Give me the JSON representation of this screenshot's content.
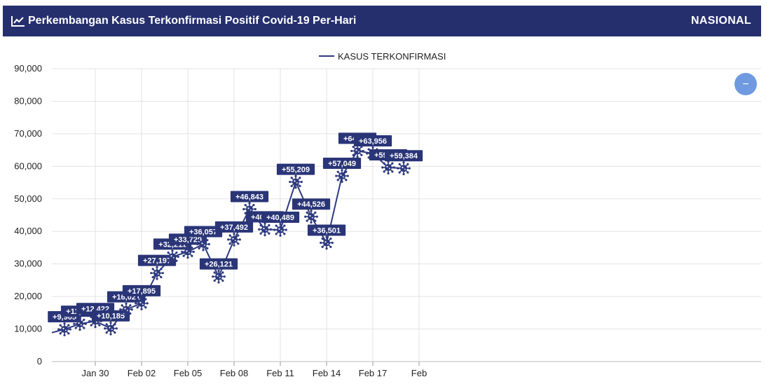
{
  "header": {
    "title": "Perkembangan Kasus Terkonfirmasi Positif Covid-19 Per-Hari",
    "scope": "NASIONAL",
    "icon": "line-chart-icon"
  },
  "zoom_button": {
    "symbol": "−",
    "icon": "zoom-out-icon",
    "color": "#6f9ae0"
  },
  "colors": {
    "header_bg": "#252f6e",
    "series": "#2e3a7e",
    "label_bg": "#2a3577"
  },
  "chart_data": {
    "type": "line",
    "title": "",
    "xlabel": "",
    "ylabel": "",
    "ylim": [
      0,
      90000
    ],
    "yticks": [
      0,
      10000,
      20000,
      30000,
      40000,
      50000,
      60000,
      70000,
      80000,
      90000
    ],
    "ytick_labels": [
      "0",
      "10,000",
      "20,000",
      "30,000",
      "40,000",
      "50,000",
      "60,000",
      "70,000",
      "80,000",
      "90,000"
    ],
    "xticks": [
      {
        "label": "Jan 30",
        "index": 2
      },
      {
        "label": "Feb 02",
        "index": 5
      },
      {
        "label": "Feb 05",
        "index": 8
      },
      {
        "label": "Feb 08",
        "index": 11
      },
      {
        "label": "Feb 11",
        "index": 14
      },
      {
        "label": "Feb 14",
        "index": 17
      },
      {
        "label": "Feb 17",
        "index": 20
      },
      {
        "label": "Feb",
        "index": 23
      }
    ],
    "x_range": [
      -0.4,
      23
    ],
    "grid": true,
    "legend": "top-center",
    "marker": "virus-icon",
    "series": [
      {
        "name": "KASUS TERKONFIRMASI",
        "lead_in": 8900,
        "x": [
          "Jan 28",
          "Jan 29",
          "Jan 30",
          "Jan 31",
          "Feb 01",
          "Feb 02",
          "Feb 03",
          "Feb 04",
          "Feb 05",
          "Feb 06",
          "Feb 07",
          "Feb 08",
          "Feb 09",
          "Feb 10",
          "Feb 11",
          "Feb 12",
          "Feb 13",
          "Feb 14",
          "Feb 15",
          "Feb 16",
          "Feb 17",
          "Feb 18",
          "Feb 19"
        ],
        "values": [
          9905,
          11588,
          12422,
          10185,
          16021,
          17895,
          27197,
          32211,
          33729,
          36057,
          26121,
          37492,
          46843,
          40618,
          40489,
          55209,
          44526,
          36501,
          57049,
          64718,
          63956,
          59635,
          59384
        ],
        "labels": [
          "+9,905",
          "+11,588",
          "+12,422",
          "+10,185",
          "+16,021",
          "+17,895",
          "+27,197",
          "+32,211",
          "+33,729",
          "+36,057",
          "+26,121",
          "+37,492",
          "+46,843",
          "+40,618",
          "+40,489",
          "+55,209",
          "+44,526",
          "+36,501",
          "+57,049",
          "+64,718",
          "+63,956",
          "+59,635",
          "+59,384"
        ]
      }
    ]
  }
}
